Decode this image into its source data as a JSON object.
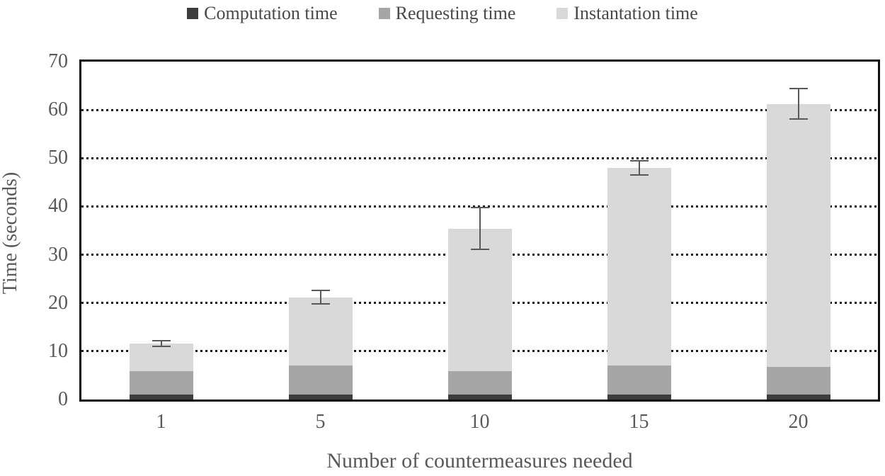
{
  "chart_data": {
    "type": "bar",
    "stacked": true,
    "title": "",
    "xlabel": "Number of countermeasures needed",
    "ylabel": "Time (seconds)",
    "categories": [
      "1",
      "5",
      "10",
      "15",
      "20"
    ],
    "series": [
      {
        "name": "Computation time",
        "color": "#3d3d3d",
        "values": [
          1.0,
          1.0,
          1.0,
          1.0,
          1.0
        ]
      },
      {
        "name": "Requesting time",
        "color": "#a6a6a6",
        "values": [
          4.8,
          6.0,
          4.9,
          6.0,
          5.7
        ]
      },
      {
        "name": "Instantation time",
        "color": "#d9d9d9",
        "values": [
          5.8,
          14.2,
          29.5,
          41.0,
          54.5
        ]
      }
    ],
    "totals": [
      11.6,
      21.2,
      35.4,
      48.0,
      61.2
    ],
    "error_bars": {
      "plus": [
        0.8,
        1.6,
        4.5,
        1.6,
        3.3
      ],
      "minus": [
        0.8,
        1.6,
        4.5,
        1.6,
        3.3
      ]
    },
    "ylim": [
      0,
      70
    ],
    "yticks": [
      0,
      10,
      20,
      30,
      40,
      50,
      60,
      70
    ],
    "gridlines_at": [
      10,
      20,
      30,
      40,
      50,
      60
    ],
    "grid_style": "horizontal-dotted",
    "legend_position": "top",
    "error_bar_color": "#595959",
    "axis_text_color": "#595959",
    "frame_color": "#0f0f0f"
  }
}
